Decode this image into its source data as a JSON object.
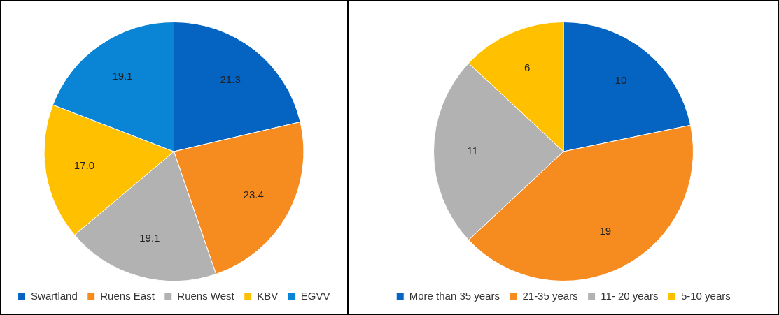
{
  "chart_data": [
    {
      "type": "pie",
      "categories": [
        "Swartland",
        "Ruens East",
        "Ruens West",
        "KBV",
        "EGVV"
      ],
      "values": [
        21.3,
        23.4,
        19.1,
        17.0,
        19.1
      ],
      "value_labels": [
        "21.3",
        "23.4",
        "19.1",
        "17.0",
        "19.1"
      ],
      "colors": [
        "#0563c1",
        "#f68c1f",
        "#b2b2b2",
        "#ffc000",
        "#0a84d4"
      ],
      "legend": "bottom"
    },
    {
      "type": "pie",
      "categories": [
        "More than 35 years",
        "21-35 years",
        "11- 20 years",
        "5-10 years"
      ],
      "values": [
        10,
        19,
        11,
        6
      ],
      "data_labels": true,
      "colors": [
        "#0563c1",
        "#f68c1f",
        "#b2b2b2",
        "#ffc000"
      ],
      "legend": "bottom"
    }
  ]
}
